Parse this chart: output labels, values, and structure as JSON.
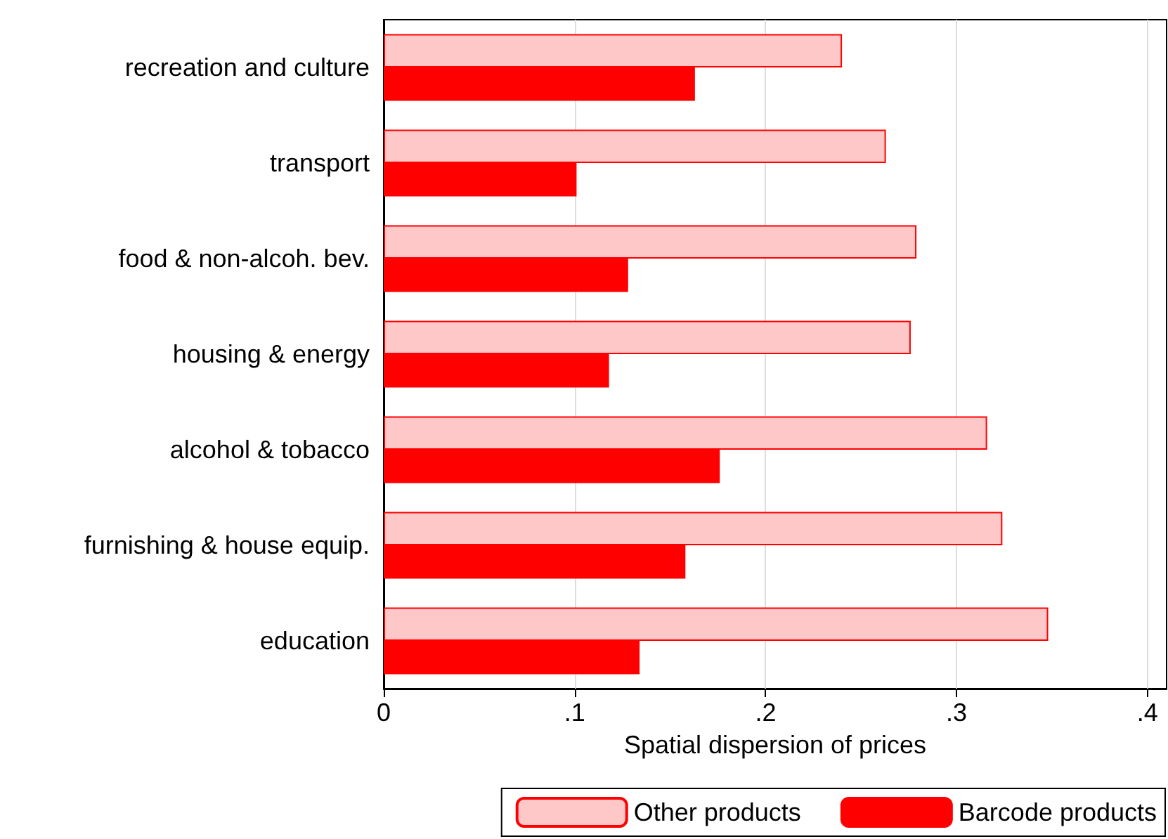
{
  "chart_data": {
    "type": "bar",
    "orientation": "horizontal",
    "categories": [
      "recreation and culture",
      "transport",
      "food & non-alcoh. bev.",
      "housing & energy",
      "alcohol & tobacco",
      "furnishing & house equip.",
      "education"
    ],
    "series": [
      {
        "name": "Other products",
        "color": "#ffc8c8",
        "values": [
          0.24,
          0.263,
          0.279,
          0.276,
          0.316,
          0.324,
          0.348
        ]
      },
      {
        "name": "Barcode products",
        "color": "#ff0000",
        "values": [
          0.163,
          0.101,
          0.128,
          0.118,
          0.176,
          0.158,
          0.134
        ]
      }
    ],
    "xlabel": "Spatial dispersion of prices",
    "xlim": [
      0,
      0.41
    ],
    "xticks": [
      0,
      {
        "value": 0.1,
        "label": ".1"
      },
      {
        "value": 0.2,
        "label": ".2"
      },
      {
        "value": 0.3,
        "label": ".3"
      },
      {
        "value": 0.4,
        "label": ".4"
      }
    ],
    "grid": "x",
    "legend": "bottom"
  }
}
